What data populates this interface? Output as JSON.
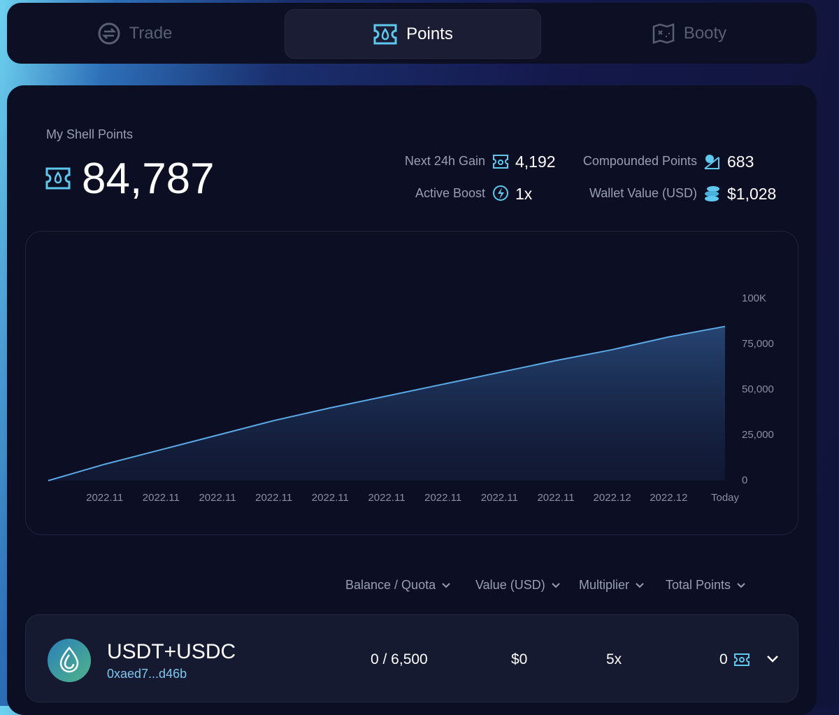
{
  "tabs": [
    "Trade",
    "Points",
    "Booty"
  ],
  "summary": {
    "label": "My Shell Points",
    "total": "84,787",
    "stats": [
      {
        "label": "Next 24h Gain",
        "value": "4,192"
      },
      {
        "label": "Compounded Points",
        "value": "683"
      },
      {
        "label": "Active Boost",
        "value": "1x"
      },
      {
        "label": "Wallet Value (USD)",
        "value": "$1,028"
      }
    ]
  },
  "chart_data": {
    "type": "area",
    "color": "#5aa9e6",
    "categories": [
      null,
      "2022.11",
      "2022.11",
      "2022.11",
      "2022.11",
      "2022.11",
      "2022.11",
      "2022.11",
      "2022.11",
      "2022.11",
      "2022.12",
      "2022.12",
      "Today"
    ],
    "values": [
      0,
      9000,
      17000,
      25000,
      33000,
      40000,
      46500,
      53000,
      59500,
      66000,
      72000,
      79000,
      84787
    ],
    "ylim": [
      0,
      100000
    ],
    "yticks": [
      0,
      {
        "value": 25000,
        "label": "25,000"
      },
      {
        "value": 50000,
        "label": "50,000"
      },
      {
        "value": 75000,
        "label": "75,000"
      },
      {
        "value": 100000,
        "label": "100K"
      }
    ],
    "grid": false
  },
  "table": {
    "headers": [
      "Balance / Quota",
      "Value (USD)",
      "Multiplier",
      "Total Points"
    ],
    "rows": [
      {
        "name": "USDT+USDC",
        "address": "0xaed7...d46b",
        "balance": "0 / 6,500",
        "value": "$0",
        "multiplier": "5x",
        "points": "0"
      }
    ]
  }
}
